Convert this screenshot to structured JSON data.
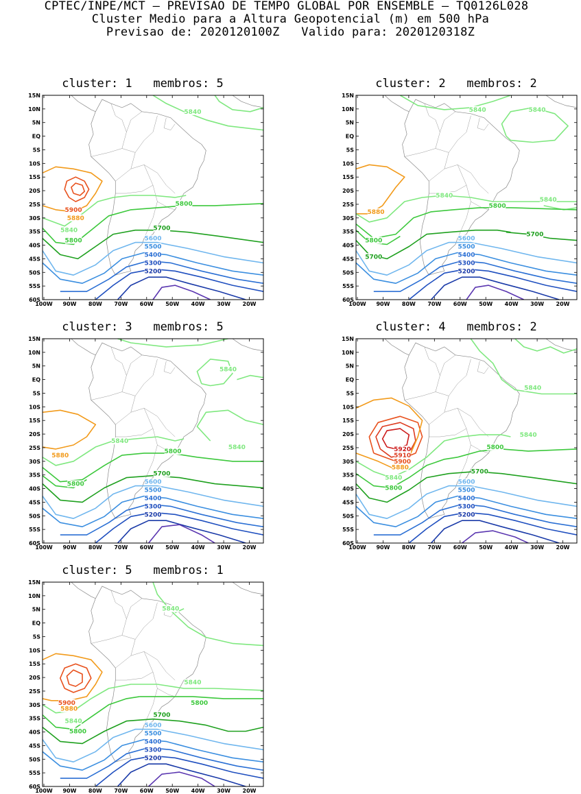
{
  "header": {
    "line1": "CPTEC/INPE/MCT – PREVISAO DE TEMPO GLOBAL POR ENSEMBLE – TQ0126L028",
    "line2": "Cluster Medio para a Altura Geopotencial (m) em 500 hPa",
    "line3": "Previsao de: 2020120100Z   Valido para: 2020120318Z"
  },
  "axes": {
    "lat_ticks": [
      "15N",
      "10N",
      "5N",
      "EQ",
      "5S",
      "10S",
      "15S",
      "20S",
      "25S",
      "30S",
      "35S",
      "40S",
      "45S",
      "50S",
      "55S",
      "60S"
    ],
    "lon_ticks": [
      "100W",
      "90W",
      "80W",
      "70W",
      "60W",
      "50W",
      "40W",
      "30W",
      "20W"
    ]
  },
  "contour_colors": {
    "5920": "#cc1a1a",
    "5910": "#dd3b1f",
    "5900": "#e8501c",
    "5880": "#f29a1a",
    "5840": "#7fe87f",
    "5800": "#3cc83c",
    "5700": "#1ea01e",
    "5600": "#6fb6ee",
    "5500": "#3a8ee0",
    "5400": "#2a6fd4",
    "5300": "#1f4fbf",
    "5200": "#1a3aa8",
    "5100": "#5a36b0"
  },
  "panels": [
    {
      "title": "cluster: 1   membros: 5",
      "labels": [
        "5840",
        "5900",
        "5880",
        "5840",
        "5800",
        "5800",
        "5700",
        "5600",
        "5500",
        "5400",
        "5300",
        "5200"
      ]
    },
    {
      "title": "cluster: 2   membros: 2",
      "labels": [
        "5840",
        "5840",
        "5880",
        "5840",
        "5840",
        "5800",
        "5700",
        "5800",
        "5700",
        "5600",
        "5500",
        "5400",
        "5300",
        "5200"
      ]
    },
    {
      "title": "cluster: 3   membros: 5",
      "labels": [
        "5840",
        "5880",
        "5840",
        "5840",
        "5800",
        "5800",
        "5700",
        "5600",
        "5500",
        "5400",
        "5300",
        "5200"
      ]
    },
    {
      "title": "cluster: 4   membros: 2",
      "labels": [
        "5840",
        "5840",
        "5920",
        "5910",
        "5900",
        "5880",
        "5800",
        "5840",
        "5800",
        "5700",
        "5600",
        "5500",
        "5400",
        "5300",
        "5200"
      ]
    },
    {
      "title": "cluster: 5   membros: 1",
      "labels": [
        "5840",
        "5840",
        "5900",
        "5880",
        "5800",
        "5840",
        "5700",
        "5800",
        "5600",
        "5500",
        "5400",
        "5300",
        "5200"
      ]
    }
  ]
}
